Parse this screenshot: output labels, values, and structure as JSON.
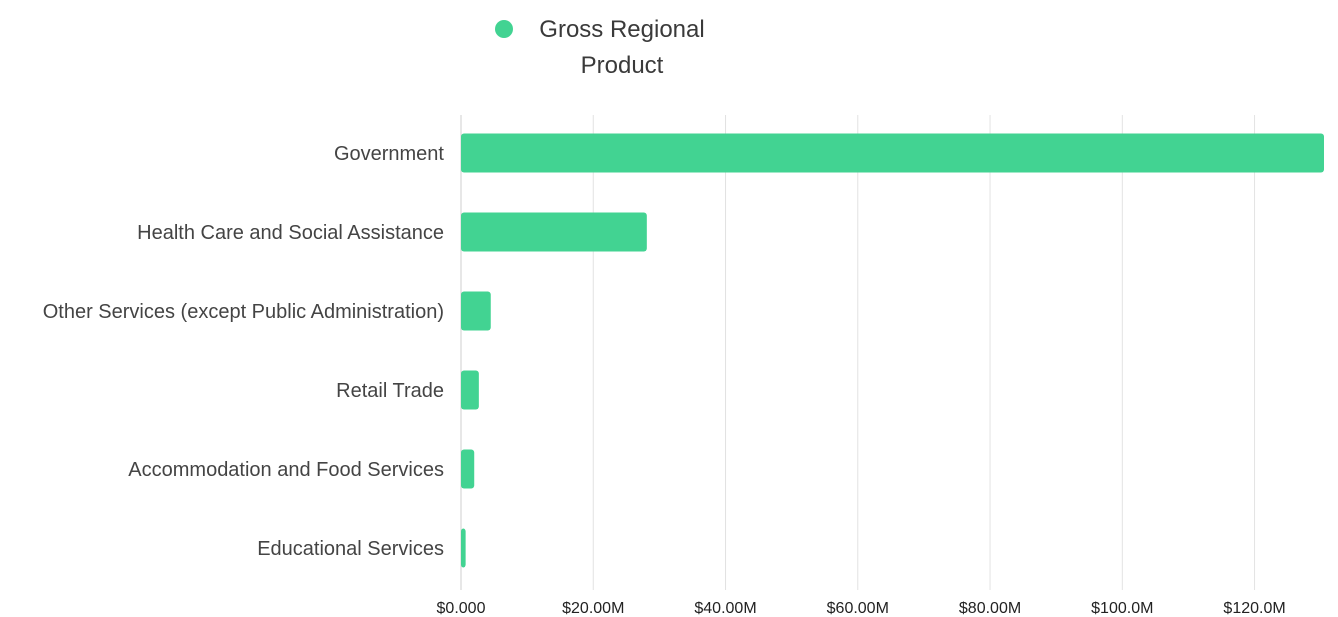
{
  "chart_data": {
    "type": "bar",
    "orientation": "horizontal",
    "categories": [
      "Government",
      "Health Care and Social Assistance",
      "Other Services (except Public Administration)",
      "Retail Trade",
      "Accommodation and Food Services",
      "Educational Services"
    ],
    "series": [
      {
        "name": "Gross Regional Product",
        "name_lines": [
          "Gross Regional",
          "Product"
        ],
        "values": [
          130.5,
          28.1,
          4.5,
          2.7,
          2.0,
          0.7
        ],
        "color": "#42d392"
      }
    ],
    "xlim": [
      0,
      130.5
    ],
    "x_ticks": [
      0,
      20,
      40,
      60,
      80,
      100,
      120
    ],
    "x_tick_labels": [
      "$0.000",
      "$20.00M",
      "$40.00M",
      "$60.00M",
      "$80.00M",
      "$100.0M",
      "$120.0M"
    ],
    "grid": true,
    "legend": "top-center",
    "title": "",
    "xlabel": "",
    "ylabel": ""
  }
}
